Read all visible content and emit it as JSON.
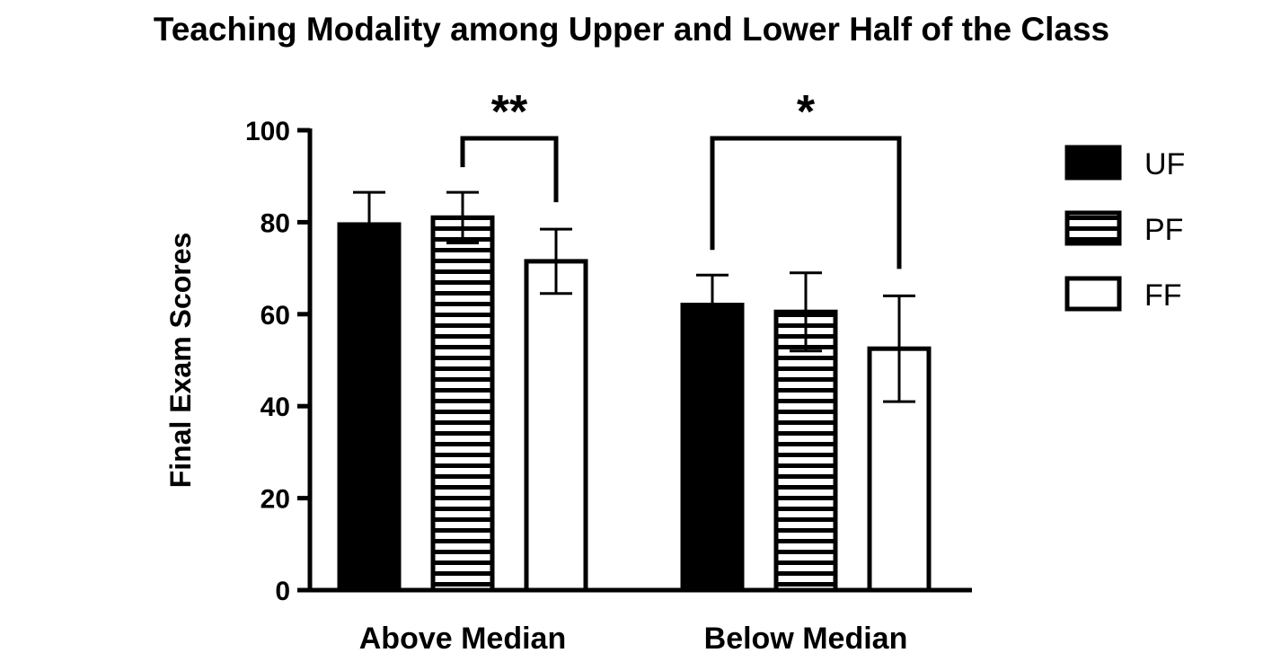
{
  "chart_data": {
    "type": "bar",
    "title": "Teaching Modality among Upper and Lower Half of the Class",
    "xlabel": "",
    "ylabel": "Final Exam Scores",
    "ylim": [
      0,
      100
    ],
    "yticks": [
      "0",
      "20",
      "40",
      "60",
      "80",
      "100"
    ],
    "categories": [
      "Above Median",
      "Below Median"
    ],
    "series": [
      {
        "name": "UF",
        "values": [
          79.5,
          62
        ],
        "error": [
          7,
          6.5
        ],
        "fill": "solid",
        "color": "#000000"
      },
      {
        "name": "PF",
        "values": [
          81,
          60.5
        ],
        "error": [
          5.5,
          8.5
        ],
        "fill": "horizontal-stripes",
        "color": "#000000"
      },
      {
        "name": "FF",
        "values": [
          71.5,
          52.5
        ],
        "error": [
          7,
          11.5
        ],
        "fill": "open",
        "color": "#ffffff"
      }
    ],
    "significance": [
      {
        "category": "Above Median",
        "from_series": "PF",
        "to_series": "FF",
        "label": "**"
      },
      {
        "category": "Below Median",
        "from_series": "UF",
        "to_series": "FF",
        "label": "*"
      }
    ],
    "legend_position": "right",
    "grid": false
  }
}
